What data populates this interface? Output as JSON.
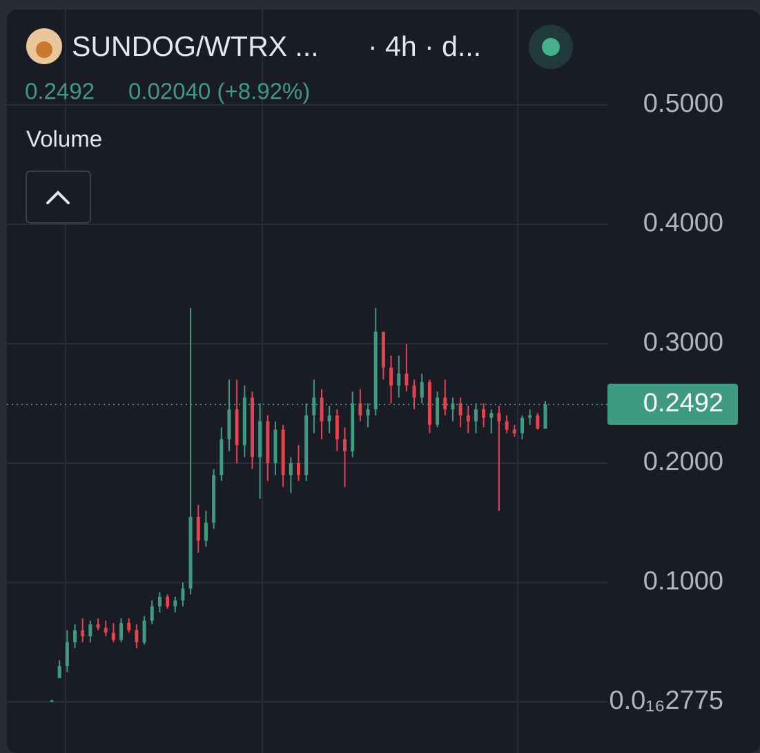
{
  "chart_data": {
    "type": "candlestick",
    "title": "SUNDOG/WTRX ...",
    "interval": "· 4h · d...",
    "header_price": "0.2492",
    "header_change": "0.02040 (+8.92%)",
    "indicator": "Volume",
    "categories": [
      null,
      null,
      null,
      null,
      null,
      null,
      null,
      null,
      null,
      null,
      null,
      null,
      null,
      null,
      null,
      null,
      null,
      null,
      null,
      null,
      null,
      null,
      null,
      null,
      null,
      null,
      null,
      null,
      null,
      null,
      null,
      null,
      null,
      null,
      null,
      null,
      null,
      null,
      null,
      null,
      null,
      null,
      null,
      null,
      null,
      null,
      null,
      null,
      null,
      null,
      null,
      null,
      null,
      null,
      null,
      null,
      null,
      null,
      null,
      null,
      null,
      null,
      null,
      null,
      null
    ],
    "open": [
      0.0,
      0.02,
      0.03,
      0.05,
      0.06,
      0.055,
      0.065,
      0.062,
      0.058,
      0.052,
      0.066,
      0.06,
      0.05,
      0.068,
      0.08,
      0.088,
      0.08,
      0.085,
      0.095,
      0.155,
      0.135,
      0.15,
      0.19,
      0.22,
      0.245,
      0.215,
      0.255,
      0.205,
      0.235,
      0.2,
      0.228,
      0.19,
      0.2,
      0.19,
      0.24,
      0.255,
      0.235,
      0.24,
      0.22,
      0.21,
      0.25,
      0.24,
      0.245,
      0.31,
      0.28,
      0.265,
      0.275,
      0.265,
      0.255,
      0.268,
      0.232,
      0.255,
      0.245,
      0.25,
      0.24,
      0.235,
      0.245,
      0.238,
      0.242,
      0.235,
      0.228,
      0.225,
      0.238,
      0.24,
      0.2288
    ],
    "high": [
      0.002,
      0.035,
      0.06,
      0.065,
      0.07,
      0.068,
      0.07,
      0.068,
      0.066,
      0.07,
      0.07,
      0.065,
      0.072,
      0.085,
      0.092,
      0.09,
      0.088,
      0.1,
      0.33,
      0.165,
      0.16,
      0.195,
      0.23,
      0.27,
      0.27,
      0.265,
      0.26,
      0.25,
      0.24,
      0.235,
      0.232,
      0.205,
      0.215,
      0.25,
      0.27,
      0.262,
      0.248,
      0.245,
      0.23,
      0.26,
      0.262,
      0.25,
      0.33,
      0.31,
      0.29,
      0.29,
      0.3,
      0.27,
      0.275,
      0.27,
      0.26,
      0.27,
      0.255,
      0.255,
      0.248,
      0.25,
      0.25,
      0.245,
      0.248,
      0.24,
      0.232,
      0.24,
      0.245,
      0.242,
      0.252
    ],
    "low": [
      0.0,
      0.02,
      0.025,
      0.045,
      0.05,
      0.05,
      0.06,
      0.055,
      0.05,
      0.05,
      0.058,
      0.045,
      0.048,
      0.065,
      0.075,
      0.078,
      0.075,
      0.08,
      0.09,
      0.125,
      0.13,
      0.145,
      0.185,
      0.21,
      0.2,
      0.205,
      0.195,
      0.17,
      0.185,
      0.19,
      0.18,
      0.175,
      0.185,
      0.185,
      0.225,
      0.22,
      0.225,
      0.21,
      0.18,
      0.205,
      0.235,
      0.23,
      0.24,
      0.27,
      0.25,
      0.255,
      0.26,
      0.245,
      0.25,
      0.225,
      0.23,
      0.24,
      0.235,
      0.23,
      0.225,
      0.225,
      0.23,
      0.225,
      0.16,
      0.225,
      0.222,
      0.22,
      0.232,
      0.228,
      0.23
    ],
    "close": [
      0.001,
      0.03,
      0.05,
      0.06,
      0.055,
      0.065,
      0.062,
      0.058,
      0.052,
      0.066,
      0.06,
      0.05,
      0.068,
      0.08,
      0.088,
      0.08,
      0.085,
      0.095,
      0.155,
      0.135,
      0.15,
      0.19,
      0.22,
      0.245,
      0.215,
      0.255,
      0.205,
      0.235,
      0.2,
      0.228,
      0.19,
      0.2,
      0.19,
      0.24,
      0.255,
      0.235,
      0.24,
      0.22,
      0.21,
      0.25,
      0.24,
      0.245,
      0.31,
      0.28,
      0.265,
      0.275,
      0.265,
      0.255,
      0.268,
      0.232,
      0.255,
      0.245,
      0.25,
      0.24,
      0.235,
      0.245,
      0.238,
      0.242,
      0.235,
      0.228,
      0.225,
      0.238,
      0.24,
      0.2288,
      0.2492
    ],
    "up_color": "#3f9b80",
    "down_color": "#e2434e",
    "last_price": 0.2492,
    "ylim": [
      -0.0428,
      0.5821
    ],
    "yticks": [
      {
        "value": 2.775e-17,
        "label": "0.0₁₆2775"
      },
      {
        "value": 0.1,
        "label": "0.1000"
      },
      {
        "value": 0.2,
        "label": "0.2000"
      },
      {
        "value": 0.3,
        "label": "0.3000"
      },
      {
        "value": 0.4,
        "label": "0.4000"
      },
      {
        "value": 0.5,
        "label": "0.5000"
      }
    ],
    "grid": true
  }
}
